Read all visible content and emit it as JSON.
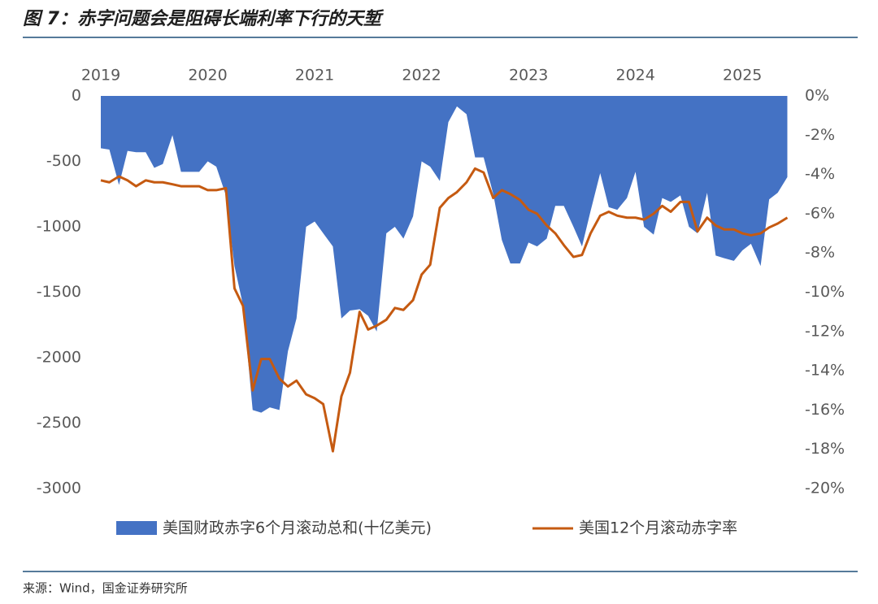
{
  "chart_data": {
    "type": "area-line",
    "title": "图 7：赤字问题会是阻碍长端利率下行的天堑",
    "source": "来源：Wind，国金证券研究所",
    "x": [
      2019.0,
      2019.08,
      2019.17,
      2019.25,
      2019.33,
      2019.42,
      2019.5,
      2019.58,
      2019.67,
      2019.75,
      2019.83,
      2019.92,
      2020.0,
      2020.08,
      2020.17,
      2020.25,
      2020.33,
      2020.42,
      2020.5,
      2020.58,
      2020.67,
      2020.75,
      2020.83,
      2020.92,
      2021.0,
      2021.08,
      2021.17,
      2021.25,
      2021.33,
      2021.42,
      2021.5,
      2021.58,
      2021.67,
      2021.75,
      2021.83,
      2021.92,
      2022.0,
      2022.08,
      2022.17,
      2022.25,
      2022.33,
      2022.42,
      2022.5,
      2022.58,
      2022.67,
      2022.75,
      2022.83,
      2022.92,
      2023.0,
      2023.08,
      2023.17,
      2023.25,
      2023.33,
      2023.42,
      2023.5,
      2023.58,
      2023.67,
      2023.75,
      2023.83,
      2023.92,
      2024.0,
      2024.08,
      2024.17,
      2024.25,
      2024.33,
      2024.42,
      2024.5,
      2024.58,
      2024.67,
      2024.75,
      2024.83,
      2024.92,
      2025.0,
      2025.08,
      2025.17,
      2025.25,
      2025.33,
      2025.42
    ],
    "series": [
      {
        "name": "美国财政赤字6个月滚动总和(十亿美元)",
        "color": "#4472c4",
        "kind": "area",
        "values": [
          -400,
          -410,
          -680,
          -420,
          -430,
          -430,
          -550,
          -520,
          -300,
          -580,
          -580,
          -580,
          -500,
          -540,
          -760,
          -1300,
          -1600,
          -2400,
          -2420,
          -2380,
          -2400,
          -1950,
          -1700,
          -1000,
          -960,
          -1050,
          -1150,
          -1700,
          -1640,
          -1630,
          -1680,
          -1800,
          -1050,
          -1000,
          -1090,
          -920,
          -500,
          -540,
          -650,
          -200,
          -80,
          -140,
          -470,
          -470,
          -750,
          -1100,
          -1280,
          -1280,
          -1120,
          -1150,
          -1090,
          -840,
          -840,
          -1000,
          -1150,
          -880,
          -590,
          -850,
          -870,
          -780,
          -580,
          -1000,
          -1060,
          -780,
          -810,
          -760,
          -1000,
          -1050,
          -740,
          -1220,
          -1240,
          -1260,
          -1180,
          -1130,
          -1300,
          -790,
          -740,
          -620
        ]
      },
      {
        "name": "美国12个月滚动赤字率",
        "color": "#c55a11",
        "kind": "line",
        "axis": "y2",
        "values": [
          -4.3,
          -4.4,
          -4.1,
          -4.3,
          -4.6,
          -4.3,
          -4.4,
          -4.4,
          -4.5,
          -4.6,
          -4.6,
          -4.6,
          -4.8,
          -4.8,
          -4.7,
          -9.8,
          -10.7,
          -15.0,
          -13.4,
          -13.4,
          -14.4,
          -14.8,
          -14.5,
          -15.2,
          -15.4,
          -15.7,
          -18.1,
          -15.3,
          -14.1,
          -11.0,
          -11.9,
          -11.7,
          -11.4,
          -10.8,
          -10.9,
          -10.4,
          -9.1,
          -8.6,
          -5.7,
          -5.2,
          -4.9,
          -4.4,
          -3.7,
          -3.9,
          -5.2,
          -4.8,
          -5.0,
          -5.3,
          -5.8,
          -6.0,
          -6.6,
          -7.0,
          -7.6,
          -8.2,
          -8.1,
          -7.0,
          -6.1,
          -5.9,
          -6.1,
          -6.2,
          -6.2,
          -6.3,
          -6.0,
          -5.6,
          -5.9,
          -5.4,
          -5.4,
          -6.9,
          -6.2,
          -6.6,
          -6.8,
          -6.8,
          -7.0,
          -7.1,
          -7.0,
          -6.7,
          -6.5,
          -6.2
        ]
      }
    ],
    "xlim": [
      2019,
      2025.5
    ],
    "xticks": [
      2019,
      2020,
      2021,
      2022,
      2023,
      2024,
      2025
    ],
    "ylim": [
      -3000,
      0
    ],
    "yticks": [
      0,
      -500,
      -1000,
      -1500,
      -2000,
      -2500,
      -3000
    ],
    "y2lim": [
      -20,
      0
    ],
    "y2ticks": [
      {
        "value": 0,
        "label": "0%"
      },
      {
        "value": -2,
        "label": "-2%"
      },
      {
        "value": -4,
        "label": "-4%"
      },
      {
        "value": -6,
        "label": "-6%"
      },
      {
        "value": -8,
        "label": "-8%"
      },
      {
        "value": -10,
        "label": "-10%"
      },
      {
        "value": -12,
        "label": "-12%"
      },
      {
        "value": -14,
        "label": "-14%"
      },
      {
        "value": -16,
        "label": "-16%"
      },
      {
        "value": -18,
        "label": "-18%"
      },
      {
        "value": -20,
        "label": "-20%"
      }
    ],
    "legend": "bottom"
  }
}
